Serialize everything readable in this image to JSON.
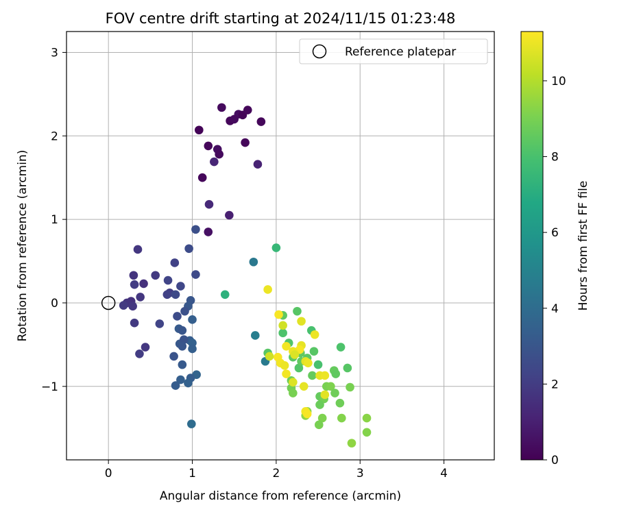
{
  "chart_data": {
    "type": "scatter",
    "title": "FOV centre drift starting at 2024/11/15 01:23:48",
    "xlabel": "Angular distance from reference (arcmin)",
    "ylabel": "Rotation from reference (arcmin)",
    "xlim": [
      -0.5,
      4.6
    ],
    "ylim": [
      -1.88,
      3.25
    ],
    "xticks": [
      0,
      1,
      2,
      3,
      4
    ],
    "yticks": [
      -1,
      0,
      1,
      2,
      3
    ],
    "grid": true,
    "legend": {
      "position": "top-right",
      "entries": [
        "Reference platepar"
      ]
    },
    "reference": {
      "label": "Reference platepar",
      "x": 0,
      "y": 0,
      "marker": "open-circle",
      "color": "#000000"
    },
    "colorbar": {
      "label": "Hours from first FF file",
      "range": [
        0,
        11.3
      ],
      "ticks": [
        0,
        2,
        4,
        6,
        8,
        10
      ],
      "colormap": "viridis"
    },
    "series": [
      {
        "color_by": "hours",
        "points": [
          [
            1.35,
            2.34,
            0.3
          ],
          [
            1.45,
            2.18,
            0.2
          ],
          [
            1.55,
            2.26,
            0.4
          ],
          [
            1.6,
            2.25,
            0.1
          ],
          [
            1.66,
            2.31,
            0.2
          ],
          [
            1.5,
            2.2,
            0.3
          ],
          [
            1.82,
            2.17,
            0.2
          ],
          [
            1.08,
            2.07,
            0.1
          ],
          [
            1.19,
            1.88,
            0.2
          ],
          [
            1.3,
            1.84,
            0.4
          ],
          [
            1.32,
            1.78,
            0.3
          ],
          [
            1.63,
            1.92,
            0.2
          ],
          [
            1.26,
            1.69,
            1.2
          ],
          [
            1.78,
            1.66,
            1.1
          ],
          [
            1.12,
            1.5,
            0.2
          ],
          [
            1.2,
            1.18,
            1.3
          ],
          [
            1.44,
            1.05,
            1.0
          ],
          [
            1.19,
            0.85,
            0.5
          ],
          [
            1.04,
            0.88,
            2.7
          ],
          [
            0.96,
            0.65,
            2.6
          ],
          [
            0.35,
            0.64,
            1.8
          ],
          [
            0.79,
            0.48,
            2.2
          ],
          [
            1.04,
            0.34,
            2.5
          ],
          [
            0.3,
            0.33,
            1.7
          ],
          [
            0.56,
            0.33,
            1.9
          ],
          [
            0.42,
            0.23,
            1.6
          ],
          [
            0.31,
            0.22,
            2.0
          ],
          [
            0.71,
            0.27,
            2.3
          ],
          [
            0.86,
            0.2,
            2.4
          ],
          [
            0.73,
            0.12,
            2.1
          ],
          [
            0.7,
            0.1,
            2.2
          ],
          [
            0.8,
            0.1,
            2.5
          ],
          [
            0.38,
            0.07,
            1.8
          ],
          [
            0.98,
            0.03,
            3.0
          ],
          [
            0.27,
            0.02,
            1.6
          ],
          [
            0.22,
            0.0,
            1.7
          ],
          [
            0.18,
            -0.03,
            1.9
          ],
          [
            0.29,
            -0.04,
            1.8
          ],
          [
            0.95,
            -0.04,
            3.1
          ],
          [
            0.91,
            -0.1,
            2.8
          ],
          [
            1.0,
            -0.2,
            3.4
          ],
          [
            0.82,
            -0.16,
            2.6
          ],
          [
            0.61,
            -0.25,
            2.3
          ],
          [
            0.31,
            -0.24,
            1.9
          ],
          [
            0.84,
            -0.31,
            3.2
          ],
          [
            0.88,
            -0.33,
            3.0
          ],
          [
            0.97,
            -0.45,
            3.3
          ],
          [
            1.0,
            -0.48,
            3.5
          ],
          [
            0.85,
            -0.49,
            3.1
          ],
          [
            0.9,
            -0.44,
            2.9
          ],
          [
            0.44,
            -0.53,
            1.8
          ],
          [
            1.0,
            -0.55,
            3.4
          ],
          [
            0.88,
            -0.52,
            3.0
          ],
          [
            0.37,
            -0.61,
            2.0
          ],
          [
            0.78,
            -0.64,
            2.9
          ],
          [
            0.88,
            -0.74,
            3.2
          ],
          [
            1.05,
            -0.86,
            3.6
          ],
          [
            0.98,
            -0.9,
            3.3
          ],
          [
            0.86,
            -0.92,
            3.4
          ],
          [
            0.95,
            -0.96,
            3.5
          ],
          [
            0.8,
            -0.99,
            3.3
          ],
          [
            0.99,
            -1.45,
            4.0
          ],
          [
            1.73,
            0.49,
            4.5
          ],
          [
            1.39,
            0.1,
            7.2
          ],
          [
            2.0,
            0.66,
            7.5
          ],
          [
            1.75,
            -0.39,
            4.8
          ],
          [
            1.87,
            -0.7,
            4.6
          ],
          [
            2.08,
            -0.15,
            8.5
          ],
          [
            2.25,
            -0.1,
            8.3
          ],
          [
            2.08,
            -0.36,
            8.1
          ],
          [
            2.15,
            -0.48,
            8.2
          ],
          [
            1.9,
            -0.6,
            8.3
          ],
          [
            2.2,
            -0.65,
            8.4
          ],
          [
            2.29,
            -0.6,
            8.5
          ],
          [
            2.42,
            -0.33,
            8.0
          ],
          [
            2.45,
            -0.58,
            8.3
          ],
          [
            2.37,
            -0.66,
            8.4
          ],
          [
            2.27,
            -0.78,
            8.2
          ],
          [
            2.5,
            -0.74,
            8.0
          ],
          [
            2.43,
            -0.87,
            8.6
          ],
          [
            2.3,
            -0.7,
            8.5
          ],
          [
            2.77,
            -0.53,
            8.1
          ],
          [
            2.85,
            -0.78,
            8.3
          ],
          [
            2.69,
            -0.81,
            8.6
          ],
          [
            2.71,
            -0.85,
            8.5
          ],
          [
            2.18,
            -0.93,
            8.7
          ],
          [
            2.18,
            -1.02,
            8.9
          ],
          [
            2.2,
            -1.08,
            9.0
          ],
          [
            2.6,
            -1.0,
            9.0
          ],
          [
            2.65,
            -1.0,
            9.1
          ],
          [
            2.7,
            -1.08,
            8.8
          ],
          [
            2.52,
            -1.12,
            8.6
          ],
          [
            2.57,
            -1.15,
            8.9
          ],
          [
            2.52,
            -1.22,
            8.7
          ],
          [
            2.76,
            -1.2,
            8.8
          ],
          [
            2.88,
            -1.01,
            9.0
          ],
          [
            2.37,
            -1.3,
            9.2
          ],
          [
            2.35,
            -1.35,
            9.4
          ],
          [
            2.55,
            -1.38,
            9.1
          ],
          [
            2.78,
            -1.38,
            9.2
          ],
          [
            2.51,
            -1.46,
            9.0
          ],
          [
            3.08,
            -1.38,
            9.3
          ],
          [
            3.08,
            -1.55,
            9.2
          ],
          [
            2.9,
            -1.68,
            9.4
          ],
          [
            1.9,
            0.16,
            11.0
          ],
          [
            2.03,
            -0.14,
            11.2
          ],
          [
            2.3,
            -0.22,
            10.8
          ],
          [
            2.08,
            -0.27,
            10.5
          ],
          [
            2.46,
            -0.38,
            11.0
          ],
          [
            2.12,
            -0.52,
            11.1
          ],
          [
            2.3,
            -0.51,
            10.9
          ],
          [
            2.28,
            -0.56,
            11.2
          ],
          [
            2.2,
            -0.58,
            11.0
          ],
          [
            2.22,
            -0.62,
            10.7
          ],
          [
            2.02,
            -0.65,
            11.2
          ],
          [
            2.05,
            -0.72,
            11.1
          ],
          [
            2.1,
            -0.75,
            11.0
          ],
          [
            2.35,
            -0.7,
            10.8
          ],
          [
            2.38,
            -0.72,
            11.0
          ],
          [
            2.12,
            -0.85,
            11.1
          ],
          [
            2.52,
            -0.87,
            10.9
          ],
          [
            2.58,
            -0.87,
            11.0
          ],
          [
            2.2,
            -0.95,
            10.7
          ],
          [
            2.33,
            -1.0,
            10.9
          ],
          [
            2.35,
            -1.3,
            11.1
          ],
          [
            2.58,
            -1.1,
            10.8
          ],
          [
            2.37,
            -1.33,
            11.2
          ],
          [
            1.92,
            -0.64,
            10.5
          ]
        ]
      }
    ]
  }
}
